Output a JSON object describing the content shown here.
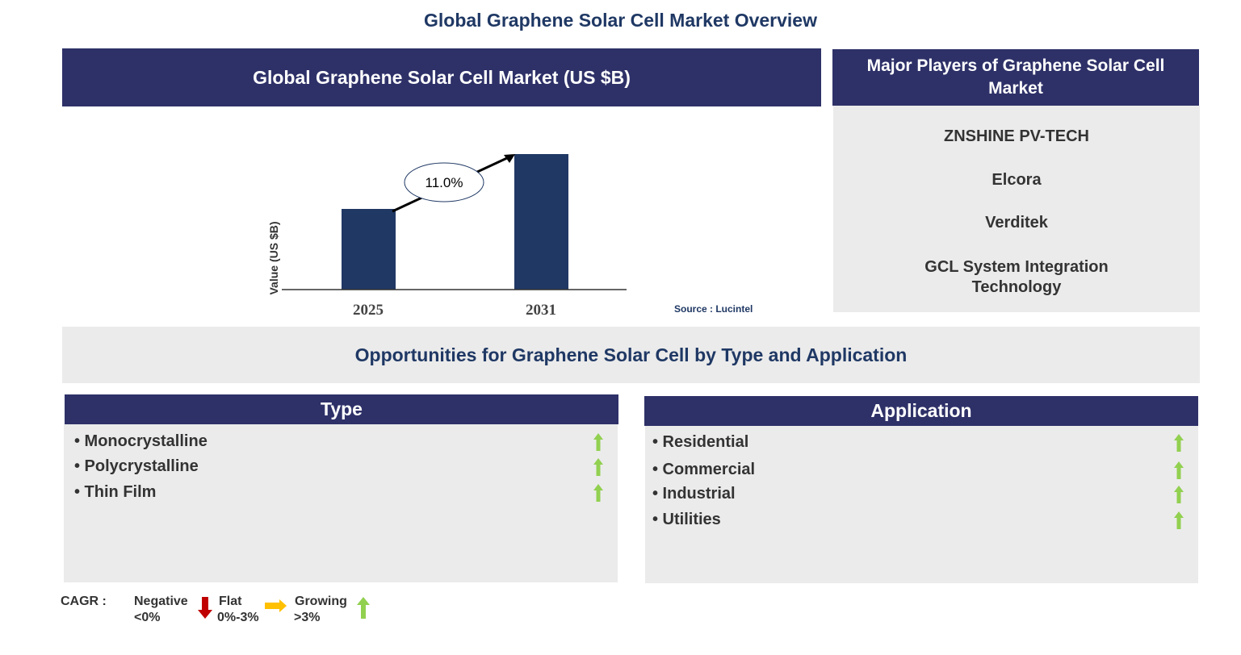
{
  "title": "Global Graphene Solar Cell Market Overview",
  "market_header": "Global Graphene Solar Cell Market (US $B)",
  "players_header": "Major Players of Graphene Solar Cell Market",
  "players": [
    "ZNSHINE  PV-TECH",
    "Elcora",
    "Verditek",
    "GCL System Integration Technology"
  ],
  "chart_data": {
    "type": "bar",
    "categories": [
      "2025",
      "2031"
    ],
    "values": [
      1.0,
      1.68
    ],
    "value_note": "relative bar heights; no values printed",
    "ylabel": "Value (US $B)",
    "annotation": "11.0%",
    "source": "Source : Lucintel",
    "colors": {
      "bar": "#203864"
    }
  },
  "opportunities_header": "Opportunities for Graphene Solar Cell by Type and Application",
  "type": {
    "header": "Type",
    "items": [
      "Monocrystalline",
      "Polycrystalline",
      "Thin Film"
    ]
  },
  "application": {
    "header": "Application",
    "items": [
      "Residential",
      "Commercial",
      "Industrial",
      "Utilities"
    ]
  },
  "legend": {
    "label": "CAGR  :",
    "negative": "Negative",
    "negative_range": "<0%",
    "flat": "Flat",
    "flat_range": "0%-3%",
    "growing": "Growing",
    "growing_range": ">3%",
    "colors": {
      "negative": "#c00000",
      "flat": "#ffc000",
      "growing": "#92d050"
    }
  }
}
